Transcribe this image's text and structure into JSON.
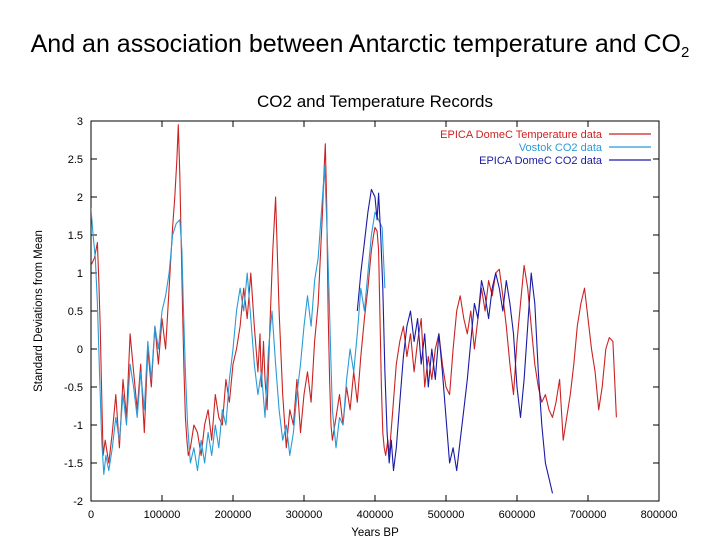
{
  "slide": {
    "title_main": "And an association between Antarctic temperature and CO",
    "title_sub": "2"
  },
  "chart_data": {
    "type": "line",
    "title": "CO2 and Temperature Records",
    "xlabel": "Years BP",
    "ylabel": "Standard Deviations from Mean",
    "xlim": [
      0,
      800000
    ],
    "ylim": [
      -2,
      3
    ],
    "xticks": [
      0,
      100000,
      200000,
      300000,
      400000,
      500000,
      600000,
      700000,
      800000
    ],
    "yticks": [
      -2,
      -1.5,
      -1,
      -0.5,
      0,
      0.5,
      1,
      1.5,
      2,
      2.5,
      3
    ],
    "grid": false,
    "legend_position": "top-right",
    "series": [
      {
        "name": "EPICA DomeC Temperature data",
        "color": "#cc2222",
        "x": [
          0,
          5000,
          9000,
          11000,
          13000,
          15000,
          17000,
          20000,
          25000,
          30000,
          35000,
          40000,
          45000,
          50000,
          55000,
          60000,
          65000,
          70000,
          75000,
          80000,
          85000,
          90000,
          95000,
          100000,
          105000,
          110000,
          115000,
          118000,
          121000,
          123000,
          125000,
          127000,
          129000,
          131000,
          133000,
          135000,
          137000,
          140000,
          145000,
          150000,
          155000,
          160000,
          165000,
          170000,
          175000,
          180000,
          185000,
          190000,
          195000,
          200000,
          205000,
          210000,
          215000,
          220000,
          225000,
          230000,
          235000,
          238000,
          240000,
          243000,
          245000,
          248000,
          252000,
          256000,
          260000,
          265000,
          270000,
          275000,
          280000,
          285000,
          290000,
          295000,
          300000,
          305000,
          310000,
          315000,
          320000,
          323000,
          326000,
          328000,
          330000,
          332000,
          334000,
          336000,
          338000,
          340000,
          345000,
          350000,
          355000,
          360000,
          365000,
          370000,
          375000,
          380000,
          385000,
          390000,
          395000,
          398000,
          400000,
          403000,
          405000,
          407000,
          409000,
          411000,
          413000,
          415000,
          418000,
          420000,
          425000,
          430000,
          435000,
          440000,
          445000,
          450000,
          455000,
          460000,
          465000,
          470000,
          475000,
          480000,
          485000,
          490000,
          495000,
          500000,
          505000,
          510000,
          515000,
          520000,
          525000,
          530000,
          535000,
          540000,
          545000,
          550000,
          555000,
          560000,
          565000,
          570000,
          575000,
          580000,
          585000,
          590000,
          595000,
          600000,
          605000,
          610000,
          615000,
          620000,
          625000,
          630000,
          635000,
          640000,
          645000,
          650000,
          655000,
          660000,
          665000,
          670000,
          675000,
          680000,
          685000,
          690000,
          695000,
          700000,
          705000,
          710000,
          715000,
          720000,
          725000,
          730000,
          735000,
          740000
        ],
        "y": [
          1.1,
          1.2,
          1.4,
          0.9,
          0.3,
          -0.6,
          -1.4,
          -1.2,
          -1.5,
          -1.1,
          -0.6,
          -1.3,
          -0.4,
          -0.9,
          0.2,
          -0.3,
          -0.8,
          -0.2,
          -1.1,
          0.0,
          -0.5,
          0.3,
          -0.2,
          0.4,
          0.0,
          0.8,
          1.6,
          2.0,
          2.5,
          2.95,
          2.3,
          1.4,
          0.5,
          -0.3,
          -0.9,
          -1.2,
          -1.4,
          -1.3,
          -1.0,
          -1.1,
          -1.4,
          -1.0,
          -0.8,
          -1.2,
          -0.6,
          -0.9,
          -1.0,
          -0.4,
          -0.7,
          -0.2,
          0.0,
          0.3,
          0.8,
          0.4,
          1.0,
          0.3,
          -0.3,
          0.2,
          -0.5,
          0.1,
          -0.4,
          -0.8,
          0.3,
          1.3,
          2.0,
          0.5,
          -0.6,
          -1.3,
          -0.8,
          -1.0,
          -0.4,
          -1.1,
          -0.6,
          -0.3,
          -0.7,
          0.1,
          0.6,
          1.2,
          1.8,
          2.3,
          2.7,
          1.9,
          0.5,
          -0.4,
          -1.0,
          -1.2,
          -0.9,
          -0.6,
          -1.0,
          -0.5,
          -0.8,
          -0.3,
          -0.7,
          -0.1,
          0.4,
          0.8,
          1.3,
          1.5,
          1.6,
          1.55,
          1.3,
          0.4,
          -0.5,
          -1.1,
          -1.3,
          -1.4,
          -1.2,
          -1.4,
          -0.8,
          -0.2,
          0.1,
          0.3,
          -0.1,
          0.2,
          -0.3,
          0.1,
          0.4,
          -0.5,
          -0.1,
          -0.4,
          0.0,
          0.2,
          -0.2,
          -0.5,
          -0.6,
          0.0,
          0.5,
          0.7,
          0.4,
          0.2,
          0.5,
          0.0,
          0.4,
          0.8,
          0.5,
          0.9,
          0.7,
          1.0,
          1.05,
          0.7,
          0.3,
          -0.2,
          -0.6,
          0.1,
          0.6,
          1.1,
          0.8,
          0.3,
          -0.2,
          -0.5,
          -0.7,
          -0.6,
          -0.8,
          -0.9,
          -0.7,
          -0.4,
          -1.2,
          -0.9,
          -0.6,
          -0.2,
          0.3,
          0.6,
          0.8,
          0.4,
          0.0,
          -0.3,
          -0.8,
          -0.5,
          0.0,
          0.15,
          0.1,
          -0.9
        ]
      },
      {
        "name": "Vostok CO2 data",
        "color": "#2b9bd6",
        "x": [
          0,
          3000,
          6000,
          9000,
          12000,
          15000,
          18000,
          21000,
          25000,
          30000,
          35000,
          40000,
          45000,
          50000,
          55000,
          60000,
          65000,
          70000,
          75000,
          80000,
          85000,
          90000,
          95000,
          100000,
          105000,
          110000,
          115000,
          120000,
          125000,
          128000,
          130000,
          133000,
          136000,
          140000,
          145000,
          150000,
          155000,
          160000,
          165000,
          170000,
          175000,
          180000,
          185000,
          190000,
          195000,
          200000,
          205000,
          210000,
          215000,
          220000,
          225000,
          230000,
          235000,
          240000,
          245000,
          250000,
          255000,
          260000,
          265000,
          270000,
          275000,
          280000,
          285000,
          290000,
          295000,
          300000,
          305000,
          310000,
          315000,
          320000,
          323000,
          326000,
          329000,
          332000,
          335000,
          338000,
          340000,
          345000,
          350000,
          355000,
          360000,
          365000,
          370000,
          375000,
          380000,
          385000,
          390000,
          395000,
          400000,
          405000,
          410000,
          414000
        ],
        "y": [
          1.85,
          1.5,
          1.2,
          0.6,
          -0.3,
          -1.2,
          -1.65,
          -1.4,
          -1.6,
          -1.3,
          -0.9,
          -1.2,
          -0.6,
          -1.0,
          -0.2,
          -0.5,
          -0.9,
          -0.3,
          -0.8,
          0.1,
          -0.4,
          0.3,
          0.0,
          0.5,
          0.7,
          1.0,
          1.5,
          1.65,
          1.7,
          1.3,
          0.6,
          -0.3,
          -1.0,
          -1.5,
          -1.3,
          -1.6,
          -1.2,
          -1.5,
          -1.1,
          -1.4,
          -1.0,
          -1.3,
          -0.8,
          -1.0,
          -0.4,
          0.0,
          0.5,
          0.8,
          0.5,
          1.0,
          0.4,
          -0.2,
          -0.6,
          -0.3,
          -0.9,
          0.0,
          0.5,
          -0.2,
          -0.8,
          -1.2,
          -1.0,
          -1.4,
          -1.1,
          -0.6,
          -0.2,
          0.3,
          0.7,
          0.3,
          0.9,
          1.2,
          1.6,
          2.0,
          2.4,
          1.7,
          0.8,
          -0.2,
          -0.8,
          -1.3,
          -0.9,
          -1.0,
          -0.4,
          0.0,
          -0.3,
          0.2,
          0.8,
          0.5,
          1.0,
          1.5,
          1.8,
          1.7,
          1.6,
          0.8
        ]
      },
      {
        "name": "EPICA DomeC CO2 data",
        "color": "#1a1aa6",
        "x": [
          375000,
          380000,
          385000,
          390000,
          395000,
          400000,
          403000,
          405000,
          408000,
          411000,
          414000,
          417000,
          420000,
          423000,
          426000,
          430000,
          435000,
          440000,
          445000,
          450000,
          455000,
          460000,
          465000,
          470000,
          475000,
          480000,
          485000,
          490000,
          495000,
          500000,
          505000,
          510000,
          515000,
          520000,
          525000,
          530000,
          535000,
          540000,
          545000,
          550000,
          555000,
          560000,
          565000,
          570000,
          575000,
          580000,
          585000,
          590000,
          595000,
          600000,
          605000,
          610000,
          615000,
          620000,
          625000,
          630000,
          635000,
          640000,
          645000,
          650000
        ],
        "y": [
          0.5,
          1.0,
          1.4,
          1.8,
          2.1,
          2.0,
          1.7,
          2.05,
          1.5,
          0.8,
          -0.3,
          -1.1,
          -1.5,
          -1.2,
          -1.6,
          -1.3,
          -0.7,
          -0.1,
          0.3,
          0.5,
          0.1,
          0.4,
          -0.2,
          0.2,
          -0.5,
          0.0,
          -0.4,
          0.2,
          -0.3,
          -0.9,
          -1.5,
          -1.3,
          -1.6,
          -1.2,
          -0.8,
          -0.4,
          0.1,
          0.6,
          0.4,
          0.9,
          0.7,
          0.4,
          0.8,
          1.0,
          0.8,
          0.5,
          0.9,
          0.6,
          0.2,
          -0.5,
          -0.9,
          -0.4,
          0.3,
          1.0,
          0.6,
          -0.3,
          -1.0,
          -1.5,
          -1.7,
          -1.9
        ]
      }
    ]
  }
}
